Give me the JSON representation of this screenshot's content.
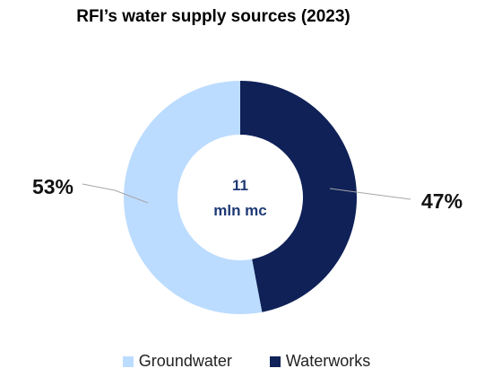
{
  "chart_data": {
    "type": "pie",
    "variant": "donut",
    "title": "RFI’s water supply sources (2023)",
    "center_label": [
      "11",
      "mln mc"
    ],
    "slices": [
      {
        "label": "Waterworks",
        "value": 47,
        "display": "47%",
        "color": "#0f2157"
      },
      {
        "label": "Groundwater",
        "value": 53,
        "display": "53%",
        "color": "#bcdcff"
      }
    ],
    "legend_order": [
      "Groundwater",
      "Waterworks"
    ],
    "legend_position": "bottom",
    "center_text_color": "#1f3a75",
    "leader_color": "#a6a6a6"
  }
}
